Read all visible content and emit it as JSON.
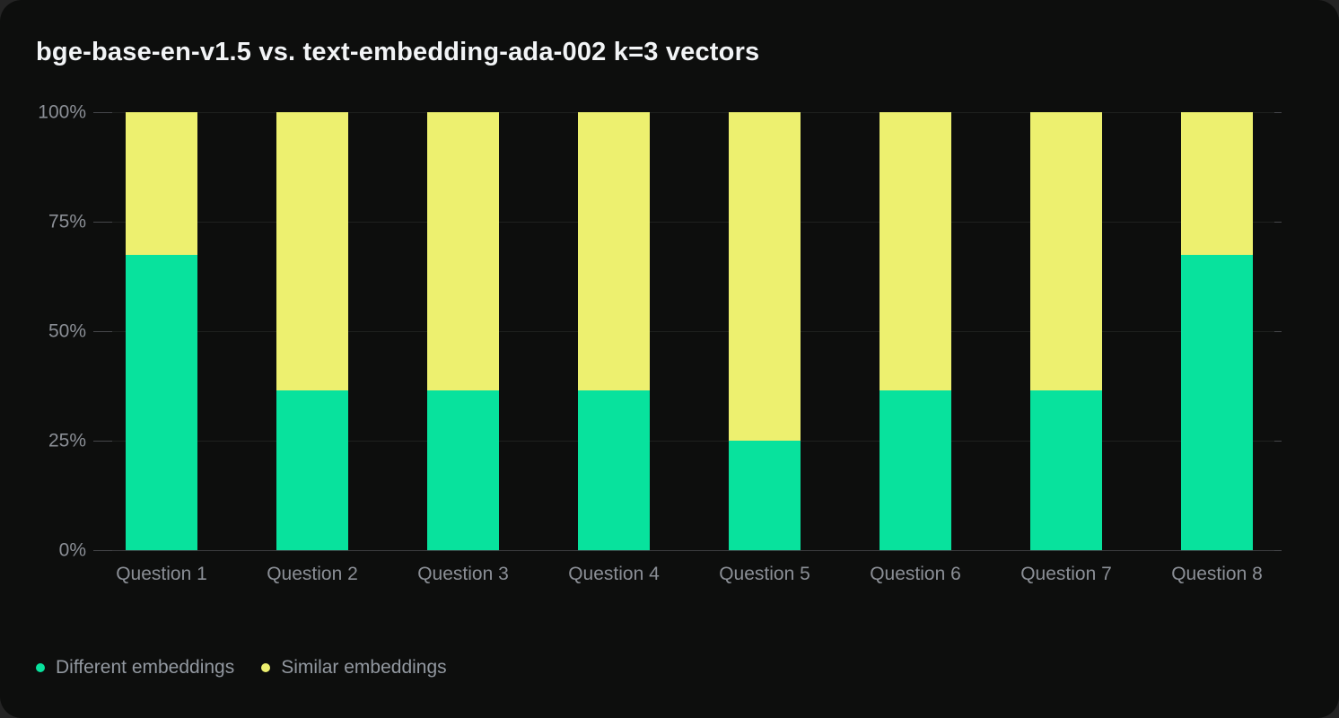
{
  "title": "bge-base-en-v1.5 vs. text-embedding-ada-002 k=3 vectors",
  "colors": {
    "card_background": "#0d0e0d",
    "page_background": "#242424",
    "different_embeddings": "#08e29d",
    "similar_embeddings": "#edf06f",
    "gridline": "#1f211f",
    "axis_text": "#8b8f96"
  },
  "chart_data": {
    "type": "bar",
    "stacked": true,
    "title": "bge-base-en-v1.5 vs. text-embedding-ada-002 k=3 vectors",
    "categories": [
      "Question 1",
      "Question 2",
      "Question 3",
      "Question 4",
      "Question 5",
      "Question 6",
      "Question 7",
      "Question 8"
    ],
    "series": [
      {
        "name": "Different embeddings",
        "color": "#08e29d",
        "values": [
          67.5,
          36.4,
          36.4,
          36.4,
          25,
          36.4,
          36.4,
          67.5
        ]
      },
      {
        "name": "Similar embeddings",
        "color": "#edf06f",
        "values": [
          32.5,
          63.6,
          63.6,
          63.6,
          75,
          63.6,
          63.6,
          32.5
        ]
      }
    ],
    "xlabel": "",
    "ylabel": "",
    "ylim": [
      0,
      100
    ],
    "ytick_values": [
      0,
      25,
      50,
      75,
      100
    ],
    "ytick_labels": [
      "0%",
      "25%",
      "50%",
      "75%",
      "100%"
    ],
    "grid": true,
    "legend_position": "bottom-left"
  }
}
